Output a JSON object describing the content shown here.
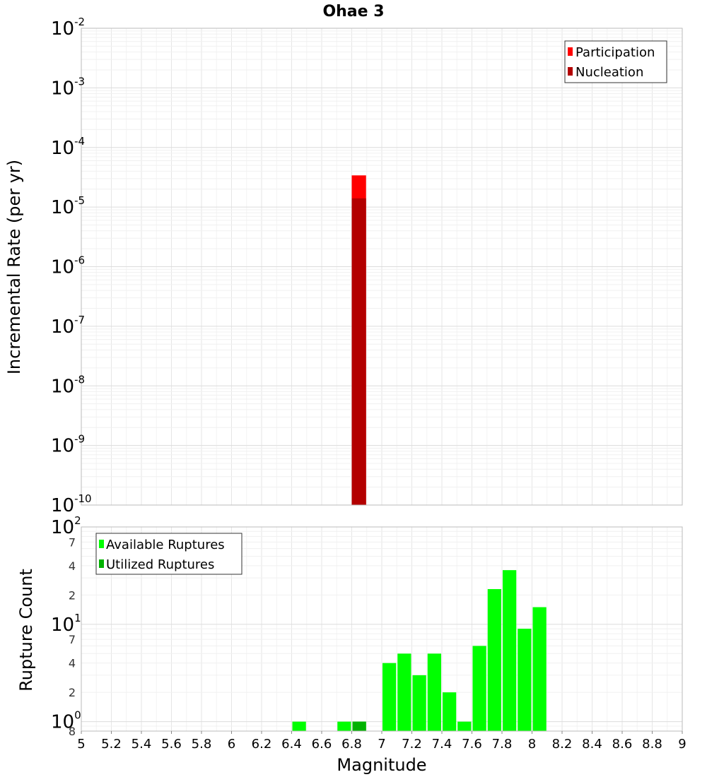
{
  "chart_data": [
    {
      "type": "bar",
      "title": "Ohae 3",
      "ylabel": "Incremental Rate (per yr)",
      "xlim": [
        5,
        9
      ],
      "ylim": [
        1e-10,
        0.01
      ],
      "y_scale": "log",
      "y_tick_labels": [
        {
          "base": "10",
          "exp": "-2",
          "value": 0.01
        },
        {
          "base": "10",
          "exp": "-3",
          "value": 0.001
        },
        {
          "base": "10",
          "exp": "-4",
          "value": 0.0001
        },
        {
          "base": "10",
          "exp": "-5",
          "value": 1e-05
        },
        {
          "base": "10",
          "exp": "-6",
          "value": 1e-06
        },
        {
          "base": "10",
          "exp": "-7",
          "value": 1e-07
        },
        {
          "base": "10",
          "exp": "-8",
          "value": 1e-08
        },
        {
          "base": "10",
          "exp": "-9",
          "value": 1e-09
        },
        {
          "base": "10",
          "exp": "-10",
          "value": 1e-10
        }
      ],
      "series": [
        {
          "name": "Participation",
          "color": "#ff0000",
          "x": [
            6.85
          ],
          "values": [
            3.4e-05
          ]
        },
        {
          "name": "Nucleation",
          "color": "#b30000",
          "x": [
            6.85
          ],
          "values": [
            1.4e-05
          ]
        }
      ],
      "bin_width": 0.1,
      "legend_position": "top-right",
      "grid": true
    },
    {
      "type": "bar",
      "xlabel": "Magnitude",
      "ylabel": "Rupture Count",
      "xlim": [
        5,
        9
      ],
      "ylim": [
        0.8,
        100
      ],
      "y_scale": "log",
      "y_tick_labels": [
        {
          "base": "10",
          "exp": "2",
          "value": 100
        },
        {
          "base": "10",
          "exp": "1",
          "value": 10
        },
        {
          "base": "10",
          "exp": "0",
          "value": 1
        }
      ],
      "y_minor_labels": [
        {
          "label": "7",
          "value": 70
        },
        {
          "label": "4",
          "value": 40
        },
        {
          "label": "2",
          "value": 20
        },
        {
          "label": "7",
          "value": 7
        },
        {
          "label": "4",
          "value": 4
        },
        {
          "label": "2",
          "value": 2
        },
        {
          "label": "8",
          "value": 0.8
        }
      ],
      "x_tick_labels": [
        "5",
        "5.2",
        "5.4",
        "5.6",
        "5.8",
        "6",
        "6.2",
        "6.4",
        "6.6",
        "6.8",
        "7",
        "7.2",
        "7.4",
        "7.6",
        "7.8",
        "8",
        "8.2",
        "8.4",
        "8.6",
        "8.8",
        "9"
      ],
      "x_ticks": [
        5,
        5.2,
        5.4,
        5.6,
        5.8,
        6,
        6.2,
        6.4,
        6.6,
        6.8,
        7,
        7.2,
        7.4,
        7.6,
        7.8,
        8,
        8.2,
        8.4,
        8.6,
        8.8,
        9
      ],
      "series": [
        {
          "name": "Available Ruptures",
          "color": "#00ff00",
          "x": [
            6.45,
            6.75,
            6.85,
            7.05,
            7.15,
            7.25,
            7.35,
            7.45,
            7.55,
            7.65,
            7.75,
            7.85,
            7.95,
            8.05
          ],
          "values": [
            1,
            1,
            1,
            4,
            5,
            3,
            5,
            2,
            1,
            6,
            23,
            36,
            9,
            15
          ]
        },
        {
          "name": "Utilized Ruptures",
          "color": "#00b200",
          "x": [
            6.85
          ],
          "values": [
            1
          ]
        }
      ],
      "bin_width": 0.1,
      "legend_position": "top-left",
      "grid": true
    }
  ]
}
